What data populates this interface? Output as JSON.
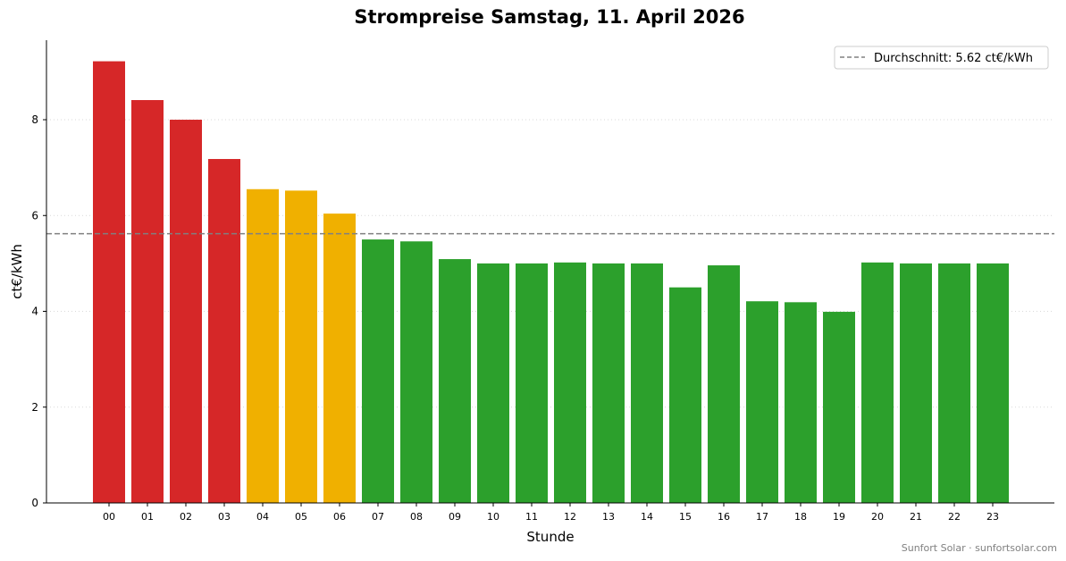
{
  "chart_data": {
    "type": "bar",
    "title": "Strompreise Samstag, 11. April 2026",
    "xlabel": "Stunde",
    "ylabel": "ct€/kWh",
    "ylim": [
      0,
      9.66
    ],
    "yticks": [
      0,
      2,
      4,
      6,
      8
    ],
    "grid": "horizontal dotted",
    "categories": [
      "00",
      "01",
      "02",
      "03",
      "04",
      "05",
      "06",
      "07",
      "08",
      "09",
      "10",
      "11",
      "12",
      "13",
      "14",
      "15",
      "16",
      "17",
      "18",
      "19",
      "20",
      "21",
      "22",
      "23"
    ],
    "values": [
      9.22,
      8.41,
      8.0,
      7.18,
      6.55,
      6.52,
      6.04,
      5.5,
      5.46,
      5.09,
      5.0,
      5.0,
      5.02,
      5.0,
      5.0,
      4.5,
      4.96,
      4.21,
      4.19,
      3.99,
      5.02,
      5.0,
      5.0,
      5.0
    ],
    "bar_colors": [
      "#d62728",
      "#d62728",
      "#d62728",
      "#d62728",
      "#f0b000",
      "#f0b000",
      "#f0b000",
      "#2ca02c",
      "#2ca02c",
      "#2ca02c",
      "#2ca02c",
      "#2ca02c",
      "#2ca02c",
      "#2ca02c",
      "#2ca02c",
      "#2ca02c",
      "#2ca02c",
      "#2ca02c",
      "#2ca02c",
      "#2ca02c",
      "#2ca02c",
      "#2ca02c",
      "#2ca02c",
      "#2ca02c"
    ],
    "average": {
      "value": 5.62,
      "label": "Durchschnitt: 5.62 ct€/kWh",
      "color": "#808080",
      "style": "dashed"
    },
    "legend_position": "top-right"
  },
  "footer": {
    "credit": "Sunfort Solar · sunfortsolar.com"
  },
  "colors": {
    "high": "#d62728",
    "medium": "#f0b000",
    "low": "#2ca02c"
  }
}
